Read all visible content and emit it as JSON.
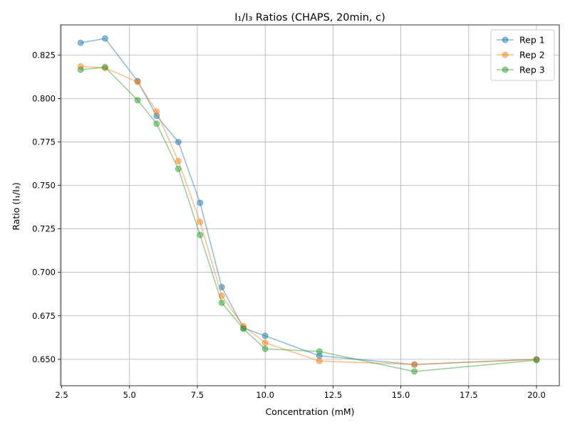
{
  "chart_data": {
    "type": "line",
    "title": "I₁/I₃ Ratios (CHAPS, 20min, c)",
    "xlabel": "Concentration (mM)",
    "ylabel": "Ratio (I₁/I₃)",
    "xlim": [
      2.46,
      20.84
    ],
    "ylim": [
      0.6348,
      0.8423
    ],
    "xticks": [
      2.5,
      5.0,
      7.5,
      10.0,
      12.5,
      15.0,
      17.5,
      20.0
    ],
    "xtick_labels": [
      "2.5",
      "5.0",
      "7.5",
      "10.0",
      "12.5",
      "15.0",
      "17.5",
      "20.0"
    ],
    "yticks": [
      0.65,
      0.675,
      0.7,
      0.725,
      0.75,
      0.775,
      0.8,
      0.825
    ],
    "ytick_labels": [
      "0.650",
      "0.675",
      "0.700",
      "0.725",
      "0.750",
      "0.775",
      "0.800",
      "0.825"
    ],
    "grid": true,
    "legend_position": "top-right",
    "x": [
      3.2,
      4.1,
      5.3,
      6.0,
      6.8,
      7.6,
      8.4,
      9.2,
      10.0,
      12.0,
      15.5,
      20.0
    ],
    "series": [
      {
        "name": "Rep 1",
        "color": "#1f77b4",
        "values": [
          0.832,
          0.8345,
          0.81,
          0.79,
          0.775,
          0.74,
          0.6915,
          0.668,
          0.6635,
          0.652,
          0.647,
          0.65
        ]
      },
      {
        "name": "Rep 2",
        "color": "#ff7f0e",
        "values": [
          0.8185,
          0.8175,
          0.8095,
          0.7925,
          0.764,
          0.729,
          0.6865,
          0.669,
          0.6595,
          0.649,
          0.647,
          0.65
        ]
      },
      {
        "name": "Rep 3",
        "color": "#2ca02c",
        "values": [
          0.8165,
          0.818,
          0.799,
          0.7855,
          0.7595,
          0.7215,
          0.6825,
          0.6675,
          0.656,
          0.6545,
          0.643,
          0.6495
        ]
      }
    ]
  }
}
